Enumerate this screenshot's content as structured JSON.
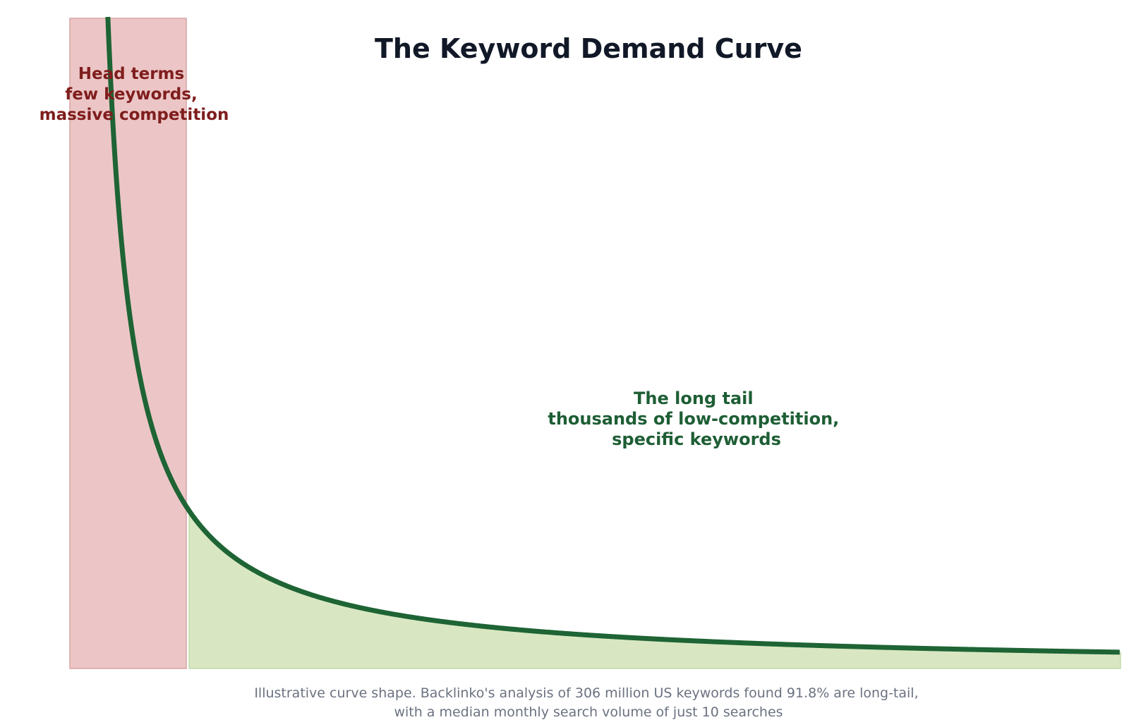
{
  "chart_data": {
    "type": "area",
    "title": "The Keyword Demand Curve",
    "xlabel": "",
    "ylabel": "",
    "grid": false,
    "axes_visible": false,
    "curve": "y = 1 / x (illustrative power-law demand curve)",
    "regions": [
      {
        "id": "head",
        "lines": [
          "Head terms",
          "few keywords,",
          "massive competition"
        ],
        "color": "#ecc6c6",
        "edge_color": "#d8a4a4"
      },
      {
        "id": "tail",
        "lines": [
          "The long tail",
          "thousands of low-competition,",
          "specific keywords"
        ],
        "color": "#d8e7c2",
        "edge_color": "#b9d5a0"
      }
    ],
    "line_color": "#1e6434",
    "caption": [
      "Illustrative curve shape. Backlinko's analysis of 306 million US keywords found 91.8% are long-tail,",
      "with a median monthly search volume of just 10 searches"
    ]
  }
}
